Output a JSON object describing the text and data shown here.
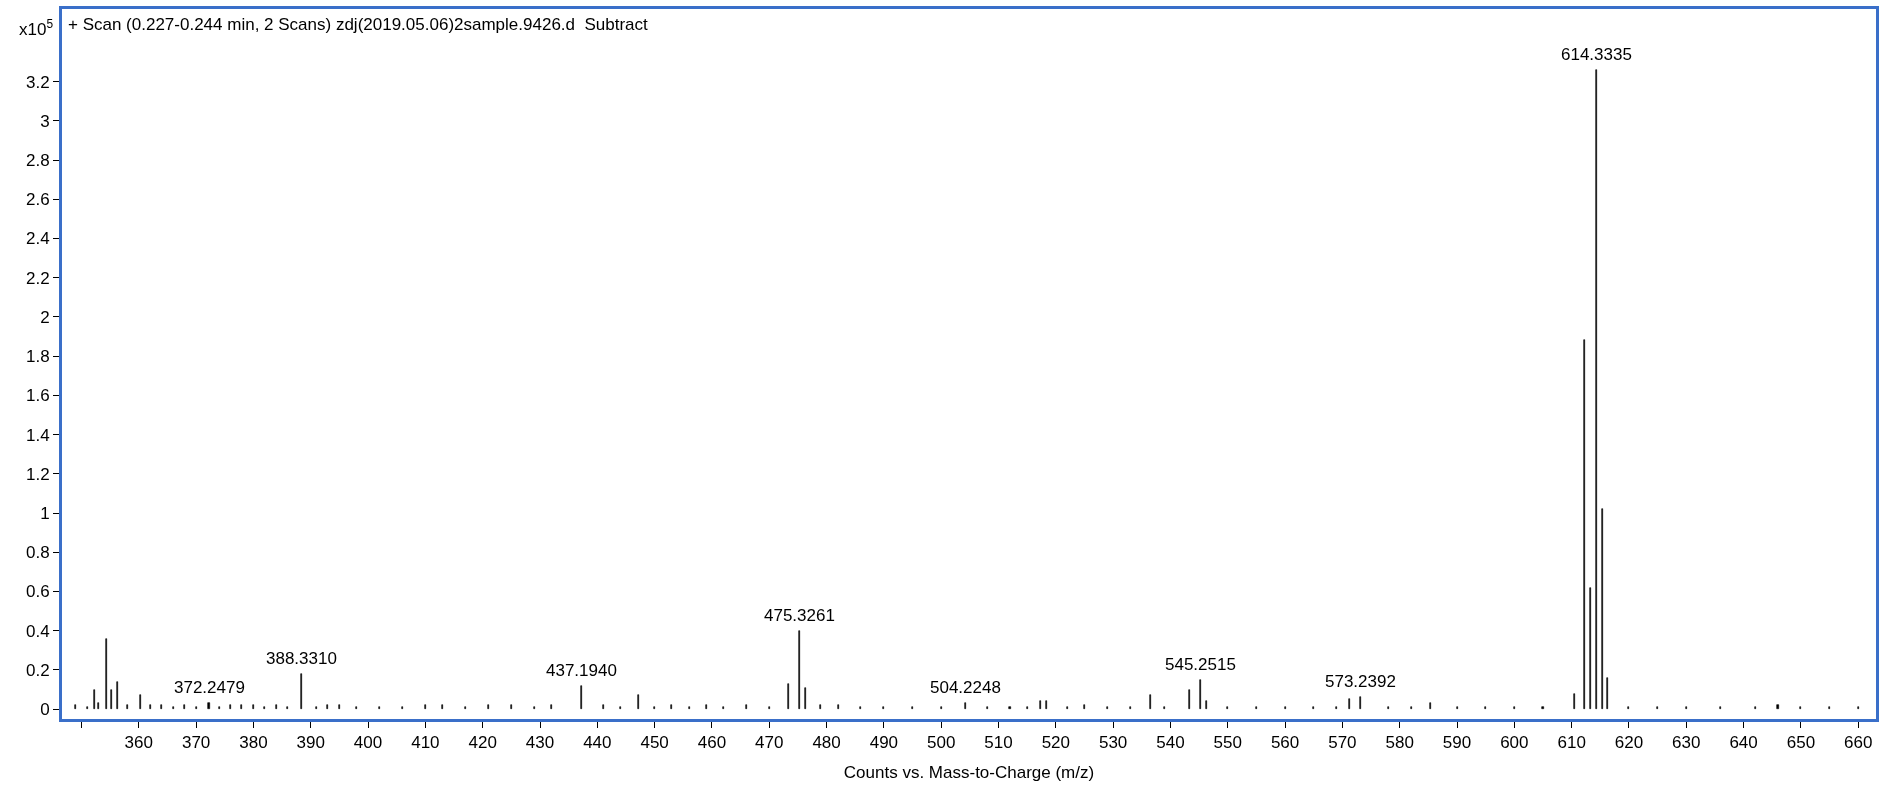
{
  "chart_data": {
    "type": "bar",
    "title": "+ Scan (0.227-0.244 min, 2 Scans) zdj(2019.05.06)2sample.9426.d  Subtract",
    "xlabel": "Counts vs. Mass-to-Charge (m/z)",
    "ylabel": "x10$^{5}$",
    "x": [
      349,
      351,
      352.3,
      353,
      354.3,
      355.3,
      356.3,
      358,
      360.3,
      362,
      364,
      366,
      368,
      370,
      372.2479,
      374,
      376,
      378,
      380,
      382,
      384,
      386,
      388.331,
      391,
      393,
      395,
      398,
      402,
      406,
      410,
      413,
      417,
      421,
      425,
      429,
      432,
      437.194,
      441,
      444,
      447.2,
      450,
      453,
      456,
      459,
      462,
      466,
      470,
      473.3,
      475.3261,
      476.3,
      479,
      482,
      486,
      490,
      495,
      500,
      504.2248,
      508,
      512,
      515,
      517.3,
      518.3,
      522,
      525,
      529,
      533,
      536.5,
      539,
      543.3,
      545.2515,
      546.3,
      550,
      555,
      560,
      565,
      569,
      571.3,
      573.2392,
      578,
      582,
      585.3,
      590,
      595,
      600,
      605,
      610.5,
      612.3,
      613.3,
      614.3335,
      615.3,
      616.3,
      620,
      625,
      630,
      636,
      642,
      646,
      650,
      655,
      660
    ],
    "values": [
      0.02,
      0.01,
      0.1,
      0.03,
      0.36,
      0.1,
      0.14,
      0.02,
      0.07,
      0.02,
      0.02,
      0.01,
      0.02,
      0.01,
      0.03,
      0.01,
      0.02,
      0.02,
      0.02,
      0.01,
      0.02,
      0.01,
      0.18,
      0.01,
      0.02,
      0.02,
      0.01,
      0.01,
      0.01,
      0.02,
      0.02,
      0.01,
      0.02,
      0.02,
      0.01,
      0.02,
      0.12,
      0.02,
      0.01,
      0.07,
      0.01,
      0.02,
      0.01,
      0.02,
      0.01,
      0.02,
      0.01,
      0.13,
      0.4,
      0.11,
      0.02,
      0.02,
      0.01,
      0.01,
      0.01,
      0.01,
      0.03,
      0.01,
      0.01,
      0.01,
      0.04,
      0.04,
      0.01,
      0.02,
      0.01,
      0.01,
      0.07,
      0.01,
      0.1,
      0.15,
      0.04,
      0.01,
      0.01,
      0.01,
      0.01,
      0.01,
      0.05,
      0.06,
      0.01,
      0.01,
      0.03,
      0.01,
      0.01,
      0.01,
      0.01,
      0.08,
      1.88,
      0.62,
      3.26,
      1.02,
      0.16,
      0.01,
      0.01,
      0.01,
      0.01,
      0.01,
      0.02,
      0.01,
      0.01,
      0.01
    ],
    "color": "#000000",
    "xlim": [
      346.6,
      663.1
    ],
    "ylim": [
      -0.05,
      3.57
    ],
    "xticks": [
      {
        "value": 350,
        "label": null
      },
      360,
      370,
      380,
      390,
      400,
      410,
      420,
      430,
      440,
      450,
      460,
      470,
      480,
      490,
      500,
      510,
      520,
      530,
      540,
      550,
      560,
      570,
      580,
      590,
      600,
      610,
      620,
      630,
      640,
      650,
      660
    ],
    "yticks": [
      0,
      0.2,
      0.4,
      0.6,
      0.8,
      1,
      1.2,
      1.4,
      1.6,
      1.8,
      2,
      2.2,
      2.4,
      2.6,
      2.8,
      3,
      3.2
    ],
    "annotations": [
      {
        "text": "372.2479",
        "x": 372.2479,
        "y": 0.03
      },
      {
        "text": "388.3310",
        "x": 388.331,
        "y": 0.18
      },
      {
        "text": "437.1940",
        "x": 437.194,
        "y": 0.12
      },
      {
        "text": "475.3261",
        "x": 475.3261,
        "y": 0.4
      },
      {
        "text": "504.2248",
        "x": 504.2248,
        "y": 0.03
      },
      {
        "text": "545.2515",
        "x": 545.2515,
        "y": 0.15
      },
      {
        "text": "573.2392",
        "x": 573.2392,
        "y": 0.06
      },
      {
        "text": "614.3335",
        "x": 614.3335,
        "y": 3.26
      }
    ],
    "legend": false
  }
}
